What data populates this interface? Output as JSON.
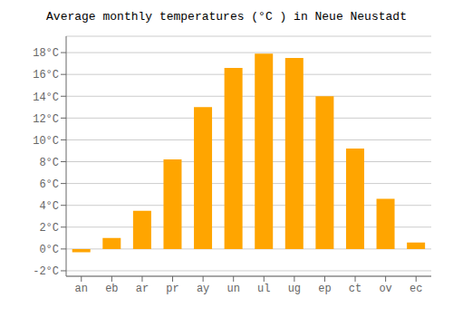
{
  "chart_data": {
    "type": "bar",
    "title": "Average monthly temperatures (°C ) in Neue Neustadt",
    "categories": [
      "an",
      "eb",
      "ar",
      "pr",
      "ay",
      "un",
      "ul",
      "ug",
      "ep",
      "ct",
      "ov",
      "ec"
    ],
    "values": [
      -0.3,
      1.0,
      3.5,
      8.2,
      13.0,
      16.6,
      17.9,
      17.5,
      14.0,
      9.2,
      4.6,
      0.6
    ],
    "color": "#FFA500",
    "ylim": [
      -2.5,
      19.5
    ],
    "yticks": [
      {
        "value": -2,
        "label": "-2°C"
      },
      {
        "value": 0,
        "label": "0°C"
      },
      {
        "value": 2,
        "label": "2°C"
      },
      {
        "value": 4,
        "label": "4°C"
      },
      {
        "value": 6,
        "label": "6°C"
      },
      {
        "value": 8,
        "label": "8°C"
      },
      {
        "value": 10,
        "label": "10°C"
      },
      {
        "value": 12,
        "label": "12°C"
      },
      {
        "value": 14,
        "label": "14°C"
      },
      {
        "value": 16,
        "label": "16°C"
      },
      {
        "value": 18,
        "label": "18°C"
      }
    ],
    "grid": true
  }
}
